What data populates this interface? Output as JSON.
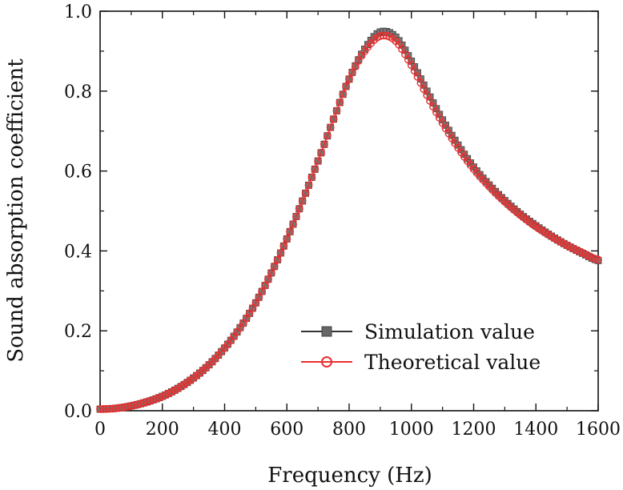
{
  "chart_data": {
    "type": "line",
    "title": "",
    "xlabel": "Frequency (Hz)",
    "ylabel": "Sound absorption coefficient",
    "xlim": [
      0,
      1600
    ],
    "ylim": [
      0.0,
      1.0
    ],
    "x_ticks": [
      "0",
      "200",
      "400",
      "600",
      "800",
      "1000",
      "1200",
      "1400",
      "1600"
    ],
    "y_ticks": [
      "0.0",
      "0.2",
      "0.4",
      "0.6",
      "0.8",
      "1.0"
    ],
    "grid": false,
    "legend_position": "bottom-right",
    "x": [
      0,
      50,
      100,
      150,
      200,
      250,
      300,
      350,
      400,
      450,
      500,
      550,
      600,
      650,
      700,
      750,
      800,
      850,
      900,
      950,
      1000,
      1050,
      1100,
      1150,
      1200,
      1250,
      1300,
      1350,
      1400,
      1450,
      1500,
      1550,
      1600
    ],
    "series": [
      {
        "name": "Simulation value",
        "color": "#555555",
        "marker": "square",
        "values": [
          0.004,
          0.006,
          0.012,
          0.022,
          0.036,
          0.056,
          0.082,
          0.115,
          0.157,
          0.208,
          0.27,
          0.345,
          0.43,
          0.525,
          0.625,
          0.73,
          0.83,
          0.905,
          0.948,
          0.935,
          0.875,
          0.8,
          0.728,
          0.665,
          0.61,
          0.565,
          0.526,
          0.492,
          0.463,
          0.437,
          0.414,
          0.394,
          0.376
        ]
      },
      {
        "name": "Theoretical value",
        "color": "#e83030",
        "marker": "circle",
        "values": [
          0.004,
          0.006,
          0.012,
          0.022,
          0.036,
          0.056,
          0.082,
          0.115,
          0.157,
          0.208,
          0.27,
          0.345,
          0.43,
          0.525,
          0.625,
          0.73,
          0.83,
          0.9,
          0.938,
          0.925,
          0.865,
          0.79,
          0.72,
          0.658,
          0.605,
          0.561,
          0.523,
          0.49,
          0.461,
          0.436,
          0.414,
          0.395,
          0.378
        ]
      }
    ]
  }
}
